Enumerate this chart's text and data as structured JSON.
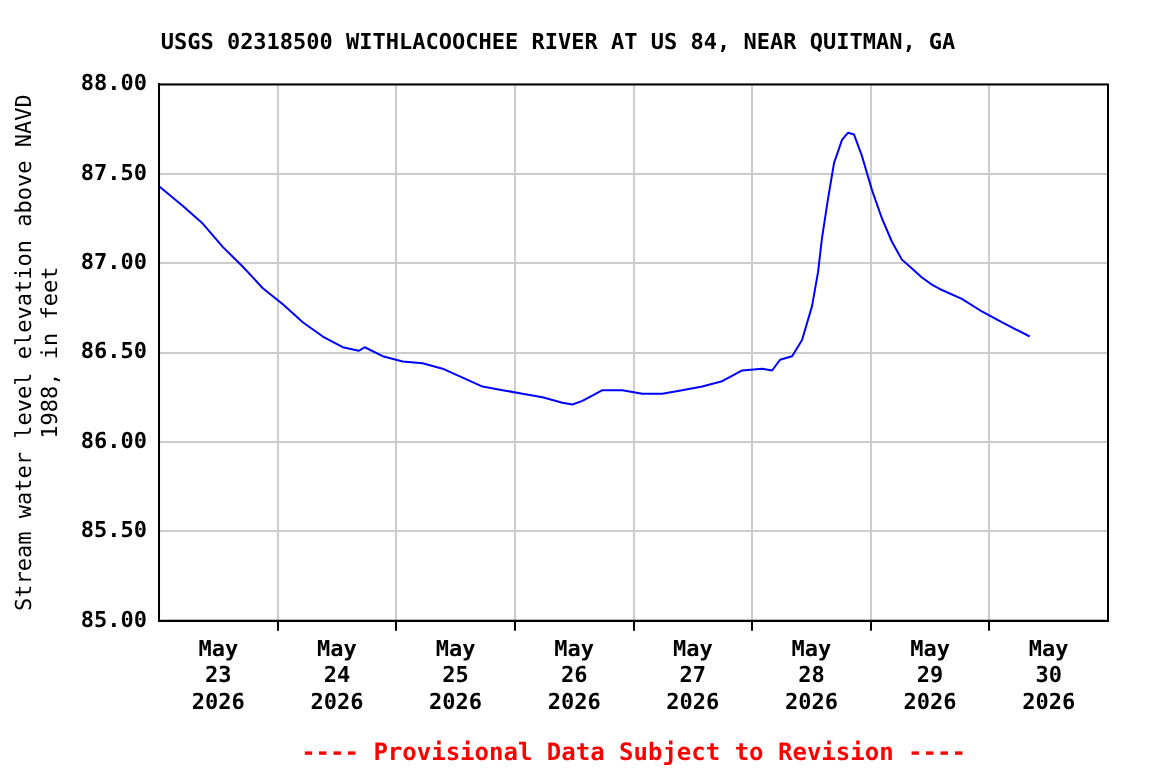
{
  "chart_data": {
    "type": "line",
    "title": "USGS 02318500 WITHLACOOCHEE RIVER AT US 84, NEAR QUITMAN, GA",
    "ylabel": "Stream water level elevation above NAVD\n1988, in feet",
    "annotations": [
      "---- Provisional Data Subject to Revision ----"
    ],
    "xlim": [
      "2026-05-23T00:00",
      "2026-05-31T00:00"
    ],
    "xticks": [
      {
        "value": "2026-05-23T12:00",
        "label": "May\n23\n2026"
      },
      {
        "value": "2026-05-24T00:00",
        "label": null
      },
      {
        "value": "2026-05-24T12:00",
        "label": "May\n24\n2026"
      },
      {
        "value": "2026-05-25T00:00",
        "label": null
      },
      {
        "value": "2026-05-25T12:00",
        "label": "May\n25\n2026"
      },
      {
        "value": "2026-05-26T00:00",
        "label": null
      },
      {
        "value": "2026-05-26T12:00",
        "label": "May\n26\n2026"
      },
      {
        "value": "2026-05-27T00:00",
        "label": null
      },
      {
        "value": "2026-05-27T12:00",
        "label": "May\n27\n2026"
      },
      {
        "value": "2026-05-28T00:00",
        "label": null
      },
      {
        "value": "2026-05-28T12:00",
        "label": "May\n28\n2026"
      },
      {
        "value": "2026-05-29T00:00",
        "label": null
      },
      {
        "value": "2026-05-29T12:00",
        "label": "May\n29\n2026"
      },
      {
        "value": "2026-05-30T00:00",
        "label": null
      },
      {
        "value": "2026-05-30T12:00",
        "label": "May\n30\n2026"
      }
    ],
    "ylim": [
      85,
      88
    ],
    "yticks": [
      {
        "value": 85,
        "label": "85.00"
      },
      {
        "value": 85.5,
        "label": "85.50"
      },
      {
        "value": 86,
        "label": "86.00"
      },
      {
        "value": 86.5,
        "label": "86.50"
      },
      {
        "value": 87,
        "label": "87.00"
      },
      {
        "value": 87.5,
        "label": "87.50"
      },
      {
        "value": 88,
        "label": "88.00"
      }
    ],
    "grid": true,
    "legend": false,
    "marker": "none",
    "line_style": "solid",
    "x": [
      "2026-05-23T00:00",
      "2026-05-23T04:50",
      "2026-05-23T08:53",
      "2026-05-23T12:56",
      "2026-05-23T16:58",
      "2026-05-23T21:00",
      "2026-05-24T01:03",
      "2026-05-24T05:05",
      "2026-05-24T09:08",
      "2026-05-24T13:10",
      "2026-05-24T16:24",
      "2026-05-24T17:37",
      "2026-05-24T21:15",
      "2026-05-25T01:18",
      "2026-05-25T05:20",
      "2026-05-25T09:22",
      "2026-05-25T13:25",
      "2026-05-25T17:27",
      "2026-05-25T21:30",
      "2026-05-26T01:32",
      "2026-05-26T05:35",
      "2026-05-26T09:37",
      "2026-05-26T11:38",
      "2026-05-26T13:39",
      "2026-05-26T15:40",
      "2026-05-26T17:42",
      "2026-05-26T21:44",
      "2026-05-27T01:47",
      "2026-05-27T05:49",
      "2026-05-27T09:51",
      "2026-05-27T13:54",
      "2026-05-27T17:56",
      "2026-05-27T21:59",
      "2026-05-28T02:01",
      "2026-05-28T04:02",
      "2026-05-28T05:39",
      "2026-05-28T08:05",
      "2026-05-28T10:06",
      "2026-05-28T12:07",
      "2026-05-28T13:20",
      "2026-05-28T14:08",
      "2026-05-28T15:21",
      "2026-05-28T16:34",
      "2026-05-28T18:11",
      "2026-05-28T19:24",
      "2026-05-28T20:36",
      "2026-05-28T22:13",
      "2026-05-29T00:14",
      "2026-05-29T02:16",
      "2026-05-29T04:17",
      "2026-05-29T06:18",
      "2026-05-29T08:20",
      "2026-05-29T10:21",
      "2026-05-29T12:22",
      "2026-05-29T14:24",
      "2026-05-29T18:26",
      "2026-05-29T22:29",
      "2026-05-30T02:30",
      "2026-05-30T08:10"
    ],
    "series": [
      {
        "color": "#0000ff",
        "values": [
          87.43,
          87.32,
          87.22,
          87.09,
          86.98,
          86.86,
          86.77,
          86.67,
          86.59,
          86.53,
          86.51,
          86.53,
          86.48,
          86.45,
          86.44,
          86.41,
          86.36,
          86.31,
          86.29,
          86.27,
          86.25,
          86.22,
          86.21,
          86.23,
          86.26,
          86.29,
          86.29,
          86.27,
          86.27,
          86.29,
          86.31,
          86.34,
          86.4,
          86.41,
          86.4,
          86.46,
          86.48,
          86.57,
          86.76,
          86.95,
          87.14,
          87.36,
          87.56,
          87.69,
          87.73,
          87.72,
          87.6,
          87.41,
          87.25,
          87.12,
          87.02,
          86.97,
          86.92,
          86.88,
          86.85,
          86.8,
          86.73,
          86.67,
          86.59
        ]
      }
    ]
  }
}
